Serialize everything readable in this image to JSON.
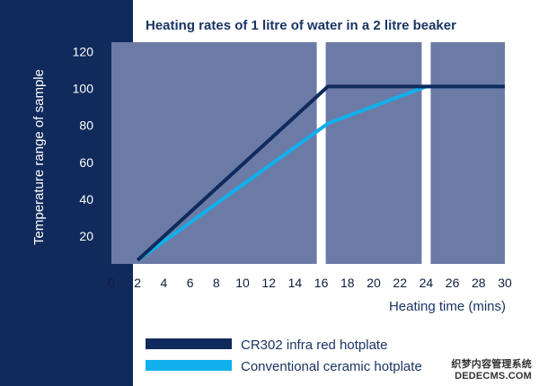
{
  "chart_data": {
    "type": "line",
    "title": "Heating rates of  1 litre of water in a 2 litre beaker",
    "xlabel": "Heating time (mins)",
    "ylabel": "Temperature range of sample",
    "xlim": [
      0,
      30
    ],
    "ylim": [
      5,
      125
    ],
    "x_ticks": [
      0,
      2,
      4,
      6,
      8,
      10,
      12,
      14,
      16,
      18,
      20,
      22,
      24,
      26,
      28,
      30
    ],
    "y_ticks": [
      20,
      40,
      60,
      80,
      100,
      120
    ],
    "panel_breaks": [
      16,
      24
    ],
    "series": [
      {
        "name": "CR302 infra red hotplate",
        "color": "#0f2a5c",
        "x": [
          2,
          16.5,
          30
        ],
        "y": [
          7,
          101,
          101
        ]
      },
      {
        "name": "Conventional ceramic hotplate",
        "color": "#10b0ec",
        "x": [
          2,
          16.5,
          24,
          30
        ],
        "y": [
          7,
          81,
          101,
          101
        ]
      }
    ],
    "legend": "bottom-left",
    "colors": {
      "sidebar": "#112a5c",
      "plot_bg": "#6c7ba6",
      "text": "#1a3563",
      "tick": "#0d1e40"
    }
  },
  "watermark": {
    "line1": "织梦内容管理系统",
    "line2": "DEDECMS.COM"
  }
}
